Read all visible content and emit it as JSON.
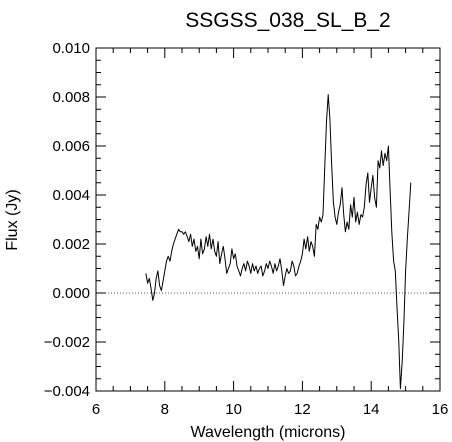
{
  "chart_data": {
    "type": "line",
    "title": "SSGSS_038_SL_B_2",
    "xlabel": "Wavelength (microns)",
    "ylabel": "Flux (Jy)",
    "xlim": [
      6,
      16
    ],
    "ylim": [
      -0.004,
      0.01
    ],
    "x_ticks": [
      "6",
      "8",
      "10",
      "12",
      "14",
      "16"
    ],
    "y_ticks": [
      "−0.004",
      "−0.002",
      "0.000",
      "0.002",
      "0.004",
      "0.006",
      "0.008",
      "0.010"
    ],
    "zero_line": "dotted",
    "grid": false,
    "series": [
      {
        "color": "#000000",
        "x": [
          7.45,
          7.5,
          7.55,
          7.6,
          7.65,
          7.7,
          7.75,
          7.8,
          7.85,
          7.9,
          7.95,
          8.0,
          8.05,
          8.1,
          8.15,
          8.2,
          8.25,
          8.3,
          8.35,
          8.4,
          8.45,
          8.5,
          8.55,
          8.6,
          8.65,
          8.7,
          8.75,
          8.8,
          8.85,
          8.9,
          8.95,
          9.0,
          9.05,
          9.1,
          9.15,
          9.2,
          9.25,
          9.3,
          9.35,
          9.4,
          9.45,
          9.5,
          9.55,
          9.6,
          9.65,
          9.7,
          9.75,
          9.8,
          9.85,
          9.9,
          9.95,
          10.0,
          10.05,
          10.1,
          10.15,
          10.2,
          10.25,
          10.3,
          10.35,
          10.4,
          10.45,
          10.5,
          10.55,
          10.6,
          10.65,
          10.7,
          10.75,
          10.8,
          10.85,
          10.9,
          10.95,
          11.0,
          11.05,
          11.1,
          11.15,
          11.2,
          11.25,
          11.3,
          11.35,
          11.4,
          11.45,
          11.5,
          11.55,
          11.6,
          11.65,
          11.7,
          11.75,
          11.8,
          11.85,
          11.9,
          11.95,
          12.0,
          12.05,
          12.1,
          12.15,
          12.2,
          12.25,
          12.3,
          12.35,
          12.4,
          12.45,
          12.5,
          12.55,
          12.6,
          12.65,
          12.7,
          12.75,
          12.8,
          12.85,
          12.9,
          12.95,
          13.0,
          13.05,
          13.1,
          13.15,
          13.2,
          13.25,
          13.3,
          13.35,
          13.4,
          13.45,
          13.5,
          13.55,
          13.6,
          13.65,
          13.7,
          13.75,
          13.8,
          13.85,
          13.9,
          13.95,
          14.0,
          14.05,
          14.1,
          14.15,
          14.2,
          14.25,
          14.3,
          14.35,
          14.4,
          14.45,
          14.5,
          14.55,
          14.6,
          14.65,
          14.7,
          14.75,
          14.8,
          14.85,
          14.9,
          14.95,
          15.0,
          15.05,
          15.1,
          15.15
        ],
        "y": [
          0.0008,
          0.0004,
          0.0006,
          0.0002,
          -0.0003,
          0.0,
          0.0006,
          0.0009,
          0.0003,
          0.0001,
          0.0005,
          0.0009,
          0.0013,
          0.0015,
          0.0013,
          0.0017,
          0.002,
          0.0022,
          0.0024,
          0.0026,
          0.0025,
          0.0025,
          0.0024,
          0.0025,
          0.0023,
          0.0021,
          0.0024,
          0.0019,
          0.0022,
          0.0017,
          0.0019,
          0.0014,
          0.0022,
          0.0016,
          0.0018,
          0.0023,
          0.0019,
          0.0024,
          0.0018,
          0.0022,
          0.0017,
          0.0015,
          0.0021,
          0.0012,
          0.0016,
          0.0019,
          0.0014,
          0.0008,
          0.001,
          0.0012,
          0.0018,
          0.0014,
          0.0016,
          0.0011,
          0.0009,
          0.0007,
          0.001,
          0.0012,
          0.0009,
          0.0013,
          0.0011,
          0.0008,
          0.0012,
          0.0009,
          0.0011,
          0.0008,
          0.001,
          0.0011,
          0.0007,
          0.0009,
          0.0012,
          0.001,
          0.0013,
          0.0011,
          0.0008,
          0.0012,
          0.0009,
          0.0011,
          0.0014,
          0.0009,
          0.0003,
          0.0007,
          0.001,
          0.0008,
          0.0009,
          0.0013,
          0.0011,
          0.0007,
          0.0008,
          0.0011,
          0.0013,
          0.0016,
          0.0022,
          0.0018,
          0.0023,
          0.0017,
          0.0021,
          0.0019,
          0.0015,
          0.0028,
          0.0026,
          0.0031,
          0.0029,
          0.0032,
          0.0052,
          0.007,
          0.0081,
          0.0071,
          0.0053,
          0.0037,
          0.0031,
          0.0028,
          0.0033,
          0.0036,
          0.0043,
          0.0032,
          0.0025,
          0.0029,
          0.0026,
          0.0036,
          0.0031,
          0.0039,
          0.0029,
          0.0033,
          0.0028,
          0.0032,
          0.0031,
          0.0035,
          0.0044,
          0.0049,
          0.0037,
          0.0043,
          0.0048,
          0.0039,
          0.0035,
          0.0054,
          0.0051,
          0.0058,
          0.0052,
          0.0057,
          0.0054,
          0.006,
          0.0042,
          0.0025,
          0.0013,
          0.0009,
          -0.0006,
          -0.0019,
          -0.0039,
          -0.0028,
          -0.0012,
          0.0009,
          0.0022,
          0.0033,
          0.0045
        ]
      }
    ]
  }
}
